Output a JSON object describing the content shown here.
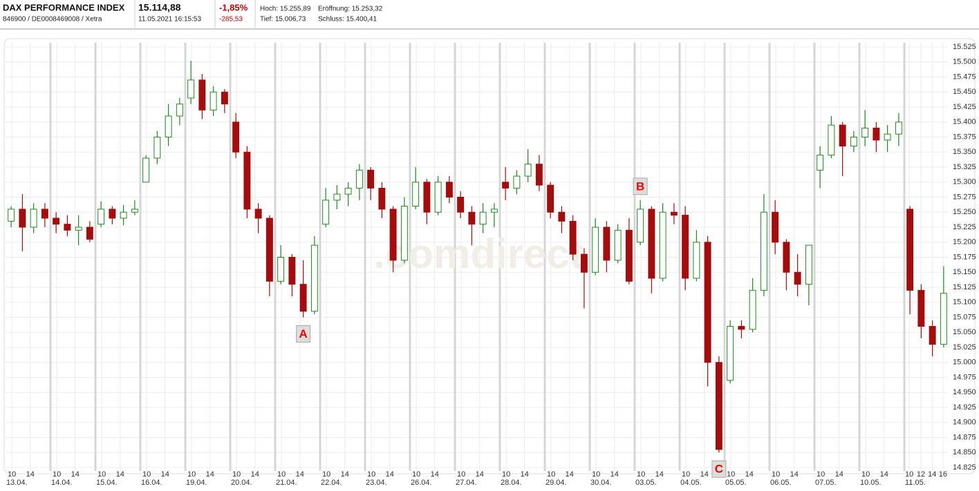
{
  "header": {
    "title": "DAX PERFORMANCE INDEX",
    "subtitle": "846900 / DE0008469008 / Xetra",
    "price": "15.114,88",
    "timestamp": "11.05.2021 16:15:53",
    "change_pct": "-1,85%",
    "change_abs": "-285,53",
    "high": "Hoch: 15.255,89",
    "low": "Tief: 15.006,73",
    "open": "Eröffnung: 15.253,32",
    "close": "Schluss: 15.400,41"
  },
  "chart_data": {
    "type": "candlestick",
    "watermark": ".comdirect",
    "categories": [
      "13.04.",
      "14.04.",
      "15.04.",
      "16.04.",
      "19.04.",
      "20.04.",
      "21.04.",
      "22.04.",
      "23.04.",
      "26.04.",
      "27.04.",
      "28.04.",
      "29.04.",
      "30.04.",
      "03.05.",
      "04.05.",
      "05.05.",
      "06.05.",
      "07.05.",
      "10.05.",
      "11.05."
    ],
    "candles_per_day": 4,
    "open": [
      15235,
      15255,
      15225,
      15255,
      15240,
      15230,
      15220,
      15225,
      15230,
      15255,
      15240,
      15250,
      15300,
      15340,
      15375,
      15410,
      15440,
      15470,
      15420,
      15450,
      15400,
      15350,
      15255,
      15240,
      15135,
      15175,
      15130,
      15085,
      15230,
      15270,
      15280,
      15290,
      15320,
      15290,
      15255,
      15170,
      15260,
      15300,
      15250,
      15300,
      15275,
      15250,
      15230,
      15250,
      15300,
      15290,
      15310,
      15330,
      15295,
      15250,
      15235,
      15180,
      15150,
      15225,
      15170,
      15220,
      15200,
      15255,
      15140,
      15250,
      15245,
      15140,
      15200,
      15000,
      14970,
      15060,
      15055,
      15120,
      15250,
      15200,
      15150,
      15130,
      15320,
      15345,
      15395,
      15360,
      15375,
      15390,
      15370,
      15380,
      15255,
      15120,
      15060,
      15030
    ],
    "high": [
      15260,
      15280,
      15265,
      15265,
      15250,
      15245,
      15245,
      15235,
      15268,
      15260,
      15262,
      15270,
      15345,
      15385,
      15430,
      15440,
      15502,
      15480,
      15460,
      15455,
      15415,
      15360,
      15265,
      15245,
      15195,
      15180,
      15170,
      15210,
      15290,
      15295,
      15300,
      15330,
      15325,
      15300,
      15260,
      15275,
      15325,
      15305,
      15310,
      15310,
      15285,
      15260,
      15265,
      15265,
      15325,
      15320,
      15355,
      15345,
      15300,
      15260,
      15245,
      15190,
      15240,
      15235,
      15230,
      15240,
      15270,
      15260,
      15265,
      15265,
      15260,
      15220,
      15210,
      15010,
      15070,
      15070,
      15140,
      15280,
      15270,
      15205,
      15180,
      15195,
      15360,
      15410,
      15400,
      15385,
      15420,
      15400,
      15395,
      15415,
      15260,
      15130,
      15070,
      15160
    ],
    "low": [
      15225,
      15185,
      15215,
      15225,
      15215,
      15210,
      15195,
      15200,
      15225,
      15230,
      15228,
      15245,
      15300,
      15330,
      15360,
      15395,
      15430,
      15405,
      15410,
      15415,
      15340,
      15240,
      15215,
      15110,
      15130,
      15110,
      15075,
      15080,
      15225,
      15255,
      15260,
      15270,
      15270,
      15240,
      15150,
      15165,
      15255,
      15230,
      15245,
      15265,
      15240,
      15195,
      15215,
      15225,
      15270,
      15280,
      15300,
      15285,
      15240,
      15215,
      15170,
      15090,
      15145,
      15150,
      15165,
      15130,
      15195,
      15115,
      15135,
      15230,
      15120,
      15135,
      14960,
      14850,
      14965,
      15040,
      15050,
      15110,
      15180,
      15120,
      15110,
      15095,
      15290,
      15340,
      15310,
      15350,
      15360,
      15350,
      15350,
      15360,
      15080,
      15040,
      15010,
      15025
    ],
    "close": [
      15255,
      15225,
      15255,
      15240,
      15230,
      15220,
      15225,
      15205,
      15255,
      15240,
      15250,
      15255,
      15340,
      15375,
      15410,
      15430,
      15470,
      15420,
      15450,
      15430,
      15350,
      15255,
      15240,
      15135,
      15175,
      15130,
      15085,
      15195,
      15270,
      15280,
      15290,
      15320,
      15290,
      15255,
      15170,
      15260,
      15300,
      15250,
      15300,
      15275,
      15250,
      15230,
      15250,
      15255,
      15290,
      15310,
      15330,
      15295,
      15250,
      15235,
      15180,
      15150,
      15225,
      15170,
      15220,
      15135,
      15255,
      15140,
      15250,
      15245,
      15140,
      15200,
      15000,
      14855,
      15060,
      15055,
      15120,
      15250,
      15200,
      15150,
      15130,
      15195,
      15345,
      15395,
      15360,
      15375,
      15390,
      15370,
      15380,
      15400,
      15120,
      15060,
      15030,
      15115
    ],
    "up_color": "#1f8a1f",
    "down_color": "#a30d0d",
    "grid": true,
    "xlim": [
      0,
      21
    ],
    "xticks": [
      {
        "value": 0.14,
        "label": "10"
      },
      {
        "value": 0.55,
        "label": "14"
      },
      {
        "value": 1.14,
        "label": "10"
      },
      {
        "value": 1.55,
        "label": "14"
      },
      {
        "value": 2.14,
        "label": "10"
      },
      {
        "value": 2.55,
        "label": "14"
      },
      {
        "value": 3.14,
        "label": "10"
      },
      {
        "value": 3.55,
        "label": "14"
      },
      {
        "value": 4.14,
        "label": "10"
      },
      {
        "value": 4.55,
        "label": "14"
      },
      {
        "value": 5.14,
        "label": "10"
      },
      {
        "value": 5.55,
        "label": "14"
      },
      {
        "value": 6.14,
        "label": "10"
      },
      {
        "value": 6.55,
        "label": "14"
      },
      {
        "value": 7.14,
        "label": "10"
      },
      {
        "value": 7.55,
        "label": "14"
      },
      {
        "value": 8.14,
        "label": "10"
      },
      {
        "value": 8.55,
        "label": "14"
      },
      {
        "value": 9.14,
        "label": "10"
      },
      {
        "value": 9.55,
        "label": "14"
      },
      {
        "value": 10.14,
        "label": "10"
      },
      {
        "value": 10.55,
        "label": "14"
      },
      {
        "value": 11.14,
        "label": "10"
      },
      {
        "value": 11.55,
        "label": "14"
      },
      {
        "value": 12.14,
        "label": "10"
      },
      {
        "value": 12.55,
        "label": "14"
      },
      {
        "value": 13.14,
        "label": "10"
      },
      {
        "value": 13.55,
        "label": "14"
      },
      {
        "value": 14.14,
        "label": "10"
      },
      {
        "value": 14.55,
        "label": "14"
      },
      {
        "value": 15.14,
        "label": "10"
      },
      {
        "value": 15.55,
        "label": "14"
      },
      {
        "value": 16.14,
        "label": "10"
      },
      {
        "value": 16.55,
        "label": "14"
      },
      {
        "value": 17.14,
        "label": "10"
      },
      {
        "value": 17.55,
        "label": "14"
      },
      {
        "value": 18.14,
        "label": "10"
      },
      {
        "value": 18.55,
        "label": "14"
      },
      {
        "value": 19.14,
        "label": "10"
      },
      {
        "value": 19.55,
        "label": "14"
      },
      {
        "value": 20.11,
        "label": "10"
      },
      {
        "value": 20.37,
        "label": "12"
      },
      {
        "value": 20.62,
        "label": "14"
      },
      {
        "value": 20.86,
        "label": "16"
      }
    ],
    "ylim": [
      14825,
      15525
    ],
    "yticks": [
      {
        "value": 14825,
        "label": "14.825"
      },
      {
        "value": 14850,
        "label": "14.850"
      },
      {
        "value": 14875,
        "label": "14.875"
      },
      {
        "value": 14900,
        "label": "14.900"
      },
      {
        "value": 14925,
        "label": "14.925"
      },
      {
        "value": 14950,
        "label": "14.950"
      },
      {
        "value": 14975,
        "label": "14.975"
      },
      {
        "value": 15000,
        "label": "15.000"
      },
      {
        "value": 15025,
        "label": "15.025"
      },
      {
        "value": 15050,
        "label": "15.050"
      },
      {
        "value": 15075,
        "label": "15.075"
      },
      {
        "value": 15100,
        "label": "15.100"
      },
      {
        "value": 15125,
        "label": "15.125"
      },
      {
        "value": 15150,
        "label": "15.150"
      },
      {
        "value": 15175,
        "label": "15.175"
      },
      {
        "value": 15200,
        "label": "15.200"
      },
      {
        "value": 15225,
        "label": "15.225"
      },
      {
        "value": 15250,
        "label": "15.250"
      },
      {
        "value": 15275,
        "label": "15.275"
      },
      {
        "value": 15300,
        "label": "15.300"
      },
      {
        "value": 15325,
        "label": "15.325"
      },
      {
        "value": 15350,
        "label": "15.350"
      },
      {
        "value": 15375,
        "label": "15.375"
      },
      {
        "value": 15400,
        "label": "15.400"
      },
      {
        "value": 15425,
        "label": "15.425"
      },
      {
        "value": 15450,
        "label": "15.450"
      },
      {
        "value": 15475,
        "label": "15.475"
      },
      {
        "value": 15500,
        "label": "15.500"
      },
      {
        "value": 15525,
        "label": "15.525"
      }
    ],
    "annotations": [
      {
        "text": "A"
      },
      {
        "text": "B"
      },
      {
        "text": "C"
      }
    ]
  }
}
